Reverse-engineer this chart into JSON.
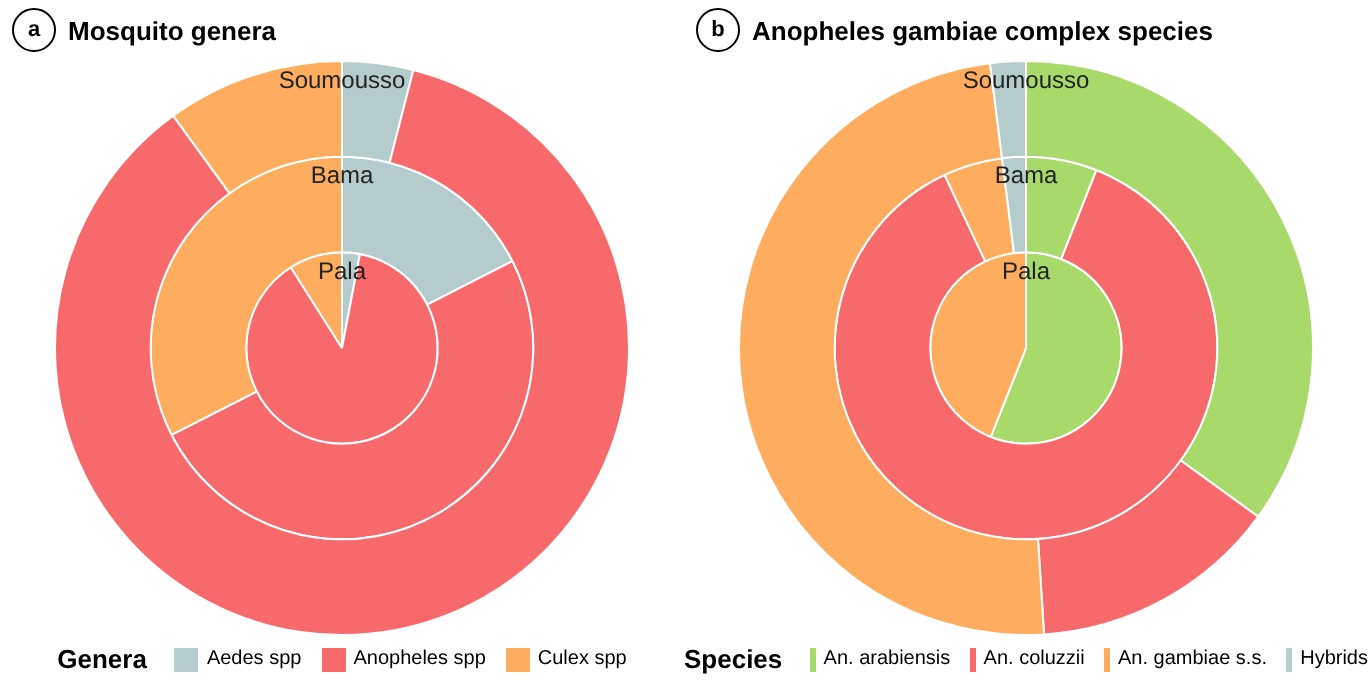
{
  "chart_data": [
    {
      "type": "pie",
      "title": "Mosquito genera",
      "annotations": [
        "a"
      ],
      "legend_title": "Genera",
      "legend": "bottom",
      "categories": [
        "Aedes spp",
        "Anopheles spp",
        "Culex spp"
      ],
      "colors": [
        "#b4cdcc",
        "#f8696b",
        "#fdad5d"
      ],
      "series": [
        {
          "name": "Pala",
          "values": [
            3,
            88,
            9
          ]
        },
        {
          "name": "Bama",
          "values": [
            17.5,
            50,
            32.5
          ]
        },
        {
          "name": "Soumousso",
          "values": [
            4,
            86,
            10
          ]
        }
      ]
    },
    {
      "type": "pie",
      "title": "Anopheles gambiae complex species",
      "annotations": [
        "b"
      ],
      "legend_title": "Species",
      "legend": "bottom",
      "categories": [
        "An. arabiensis",
        "An. coluzzii",
        "An. gambiae s.s.",
        "Hybrids"
      ],
      "colors": [
        "#a8d96b",
        "#f8696b",
        "#fdad5d",
        "#b4cdcc"
      ],
      "series": [
        {
          "name": "Pala",
          "values": [
            56,
            0,
            44,
            0
          ]
        },
        {
          "name": "Bama",
          "values": [
            6,
            87,
            5,
            2
          ]
        },
        {
          "name": "Soumousso",
          "values": [
            35,
            14,
            49,
            2
          ]
        }
      ]
    }
  ]
}
